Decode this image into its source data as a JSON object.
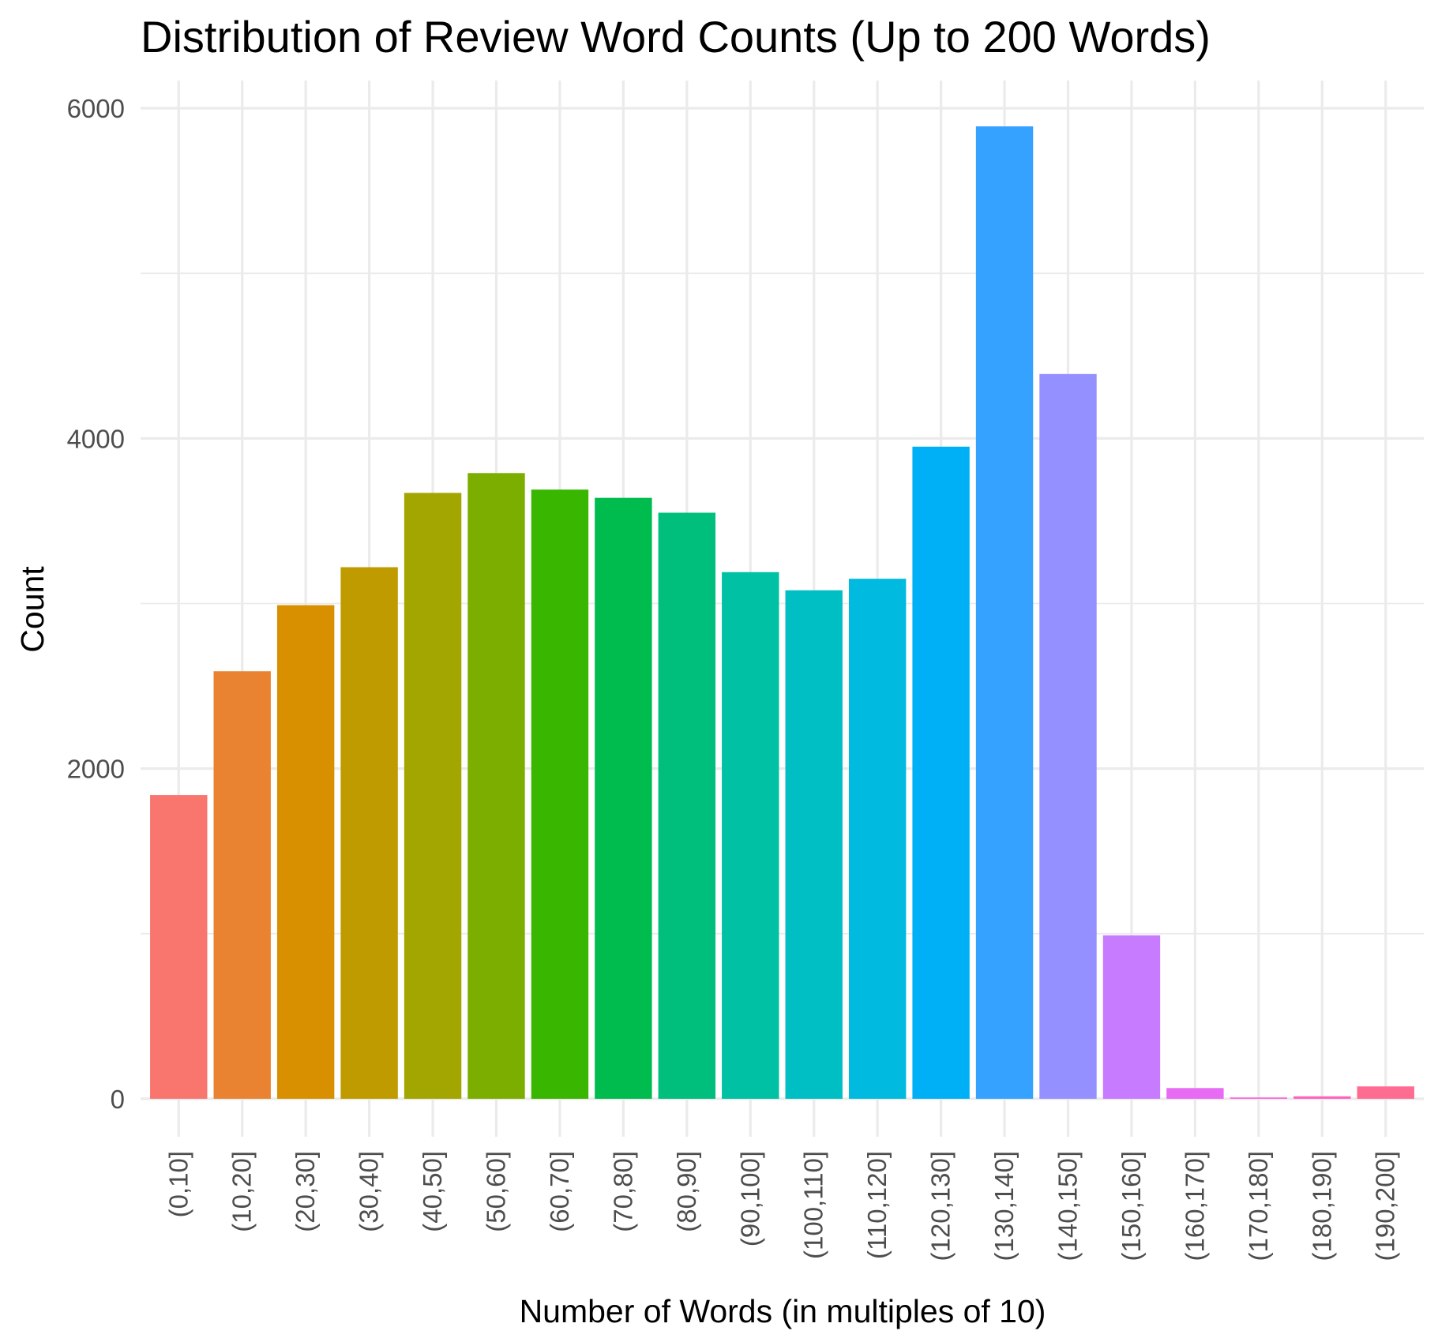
{
  "chart_data": {
    "type": "bar",
    "title": "Distribution of Review Word Counts (Up to 200 Words)",
    "xlabel": "Number of Words (in multiples of 10)",
    "ylabel": "Count",
    "ylim": [
      -230,
      6120
    ],
    "y_ticks": [
      0,
      2000,
      4000,
      6000
    ],
    "y_tick_labels": [
      "0",
      "2000",
      "4000",
      "6000"
    ],
    "grid": true,
    "legend": "none",
    "categories": [
      "(0,10]",
      "(10,20]",
      "(20,30]",
      "(30,40]",
      "(40,50]",
      "(50,60]",
      "(60,70]",
      "(70,80]",
      "(80,90]",
      "(90,100]",
      "(100,110]",
      "(110,120]",
      "(120,130]",
      "(130,140]",
      "(140,150]",
      "(150,160]",
      "(160,170]",
      "(170,180]",
      "(180,190]",
      "(190,200]"
    ],
    "values": [
      1840,
      2590,
      2990,
      3220,
      3670,
      3790,
      3690,
      3640,
      3550,
      3190,
      3080,
      3150,
      3950,
      5890,
      4390,
      990,
      65,
      8,
      15,
      75
    ],
    "colors": [
      "#F8766D",
      "#EA8331",
      "#D89000",
      "#C09B00",
      "#A3A500",
      "#7CAE00",
      "#39B600",
      "#00BB4E",
      "#00BF7D",
      "#00C1A3",
      "#00BFC4",
      "#00BAE0",
      "#00B0F6",
      "#35A2FF",
      "#9590FF",
      "#C77CFF",
      "#E76BF3",
      "#FA62DB",
      "#FF62BC",
      "#FF6C91"
    ]
  }
}
